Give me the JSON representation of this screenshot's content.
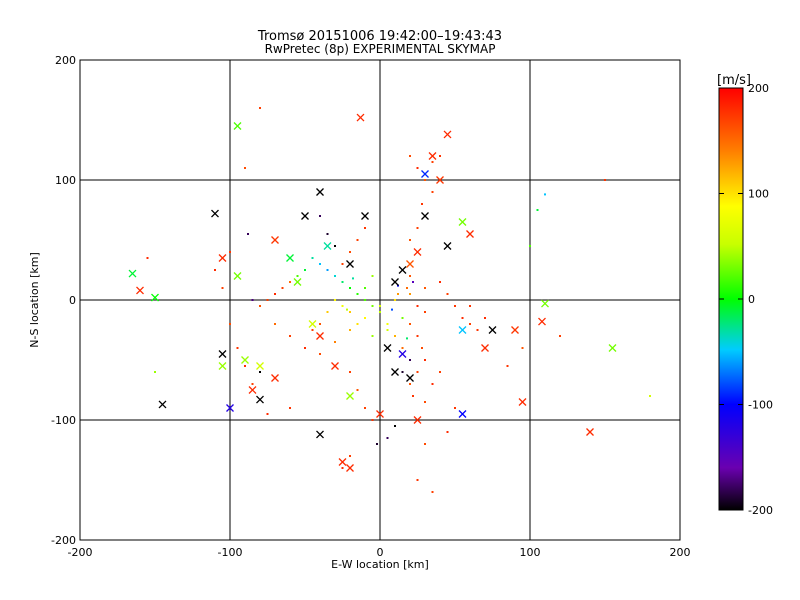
{
  "chart_data": {
    "type": "scatter",
    "title": "Tromsø 20151006 19:42:00–19:43:43",
    "subtitle": "RwPretec (8p) EXPERIMENTAL SKYMAP",
    "xlabel": "E-W location [km]",
    "ylabel": "N-S location [km]",
    "xlim": [
      -200,
      200
    ],
    "ylim": [
      -200,
      200
    ],
    "xticks": [
      "-200",
      "-100",
      "0",
      "100",
      "200"
    ],
    "yticks": [
      "-200",
      "-100",
      "0",
      "100",
      "200"
    ],
    "grid": true,
    "colorbar": {
      "label": "[m/s]",
      "range": [
        -200,
        200
      ],
      "ticks": [
        "-200",
        "-100",
        "0",
        "100",
        "200"
      ]
    },
    "series": [
      {
        "marker": "dot",
        "points": [
          [
            15,
            25,
            170
          ],
          [
            20,
            20,
            160
          ],
          [
            18,
            10,
            150
          ],
          [
            12,
            5,
            130
          ],
          [
            25,
            -5,
            180
          ],
          [
            30,
            -10,
            170
          ],
          [
            20,
            -20,
            160
          ],
          [
            25,
            -30,
            175
          ],
          [
            28,
            -40,
            165
          ],
          [
            30,
            -50,
            180
          ],
          [
            25,
            -60,
            170
          ],
          [
            20,
            -70,
            160
          ],
          [
            22,
            -80,
            175
          ],
          [
            30,
            -85,
            165
          ],
          [
            35,
            -70,
            180
          ],
          [
            40,
            -60,
            170
          ],
          [
            15,
            -40,
            150
          ],
          [
            10,
            -30,
            120
          ],
          [
            5,
            -20,
            80
          ],
          [
            0,
            -10,
            50
          ],
          [
            -5,
            -5,
            30
          ],
          [
            -10,
            0,
            20
          ],
          [
            -15,
            5,
            10
          ],
          [
            -20,
            10,
            0
          ],
          [
            -25,
            15,
            -20
          ],
          [
            -30,
            20,
            -40
          ],
          [
            -35,
            25,
            -60
          ],
          [
            -40,
            30,
            -50
          ],
          [
            -45,
            35,
            -30
          ],
          [
            -50,
            25,
            -10
          ],
          [
            -55,
            20,
            20
          ],
          [
            -60,
            15,
            150
          ],
          [
            -65,
            10,
            170
          ],
          [
            -70,
            5,
            180
          ],
          [
            -75,
            0,
            170
          ],
          [
            -80,
            -5,
            160
          ],
          [
            -70,
            -20,
            150
          ],
          [
            -60,
            -30,
            170
          ],
          [
            -50,
            -40,
            180
          ],
          [
            -40,
            -45,
            165
          ],
          [
            -30,
            -35,
            140
          ],
          [
            -20,
            -25,
            120
          ],
          [
            -10,
            -15,
            90
          ],
          [
            0,
            -5,
            60
          ],
          [
            10,
            0,
            100
          ],
          [
            20,
            5,
            130
          ],
          [
            30,
            10,
            160
          ],
          [
            40,
            15,
            180
          ],
          [
            45,
            5,
            170
          ],
          [
            50,
            -5,
            175
          ],
          [
            55,
            -15,
            180
          ],
          [
            60,
            -20,
            170
          ],
          [
            65,
            -25,
            175
          ],
          [
            70,
            -15,
            180
          ],
          [
            -15,
            -20,
            100
          ],
          [
            -20,
            -10,
            110
          ],
          [
            -25,
            -5,
            80
          ],
          [
            -30,
            0,
            90
          ],
          [
            -35,
            -10,
            110
          ],
          [
            -40,
            -20,
            160
          ],
          [
            -45,
            -25,
            170
          ],
          [
            -25,
            30,
            170
          ],
          [
            -20,
            40,
            165
          ],
          [
            -15,
            50,
            170
          ],
          [
            -10,
            60,
            175
          ],
          [
            20,
            50,
            160
          ],
          [
            25,
            60,
            170
          ],
          [
            30,
            70,
            180
          ],
          [
            28,
            80,
            175
          ],
          [
            35,
            90,
            170
          ],
          [
            30,
            100,
            160
          ],
          [
            25,
            110,
            180
          ],
          [
            35,
            115,
            170
          ],
          [
            40,
            120,
            175
          ],
          [
            20,
            120,
            165
          ],
          [
            -20,
            -60,
            170
          ],
          [
            -15,
            -75,
            160
          ],
          [
            -10,
            -90,
            170
          ],
          [
            -5,
            -100,
            175
          ],
          [
            -25,
            -140,
            180
          ],
          [
            -20,
            -130,
            170
          ],
          [
            25,
            -150,
            175
          ],
          [
            35,
            -160,
            170
          ],
          [
            30,
            -120,
            165
          ],
          [
            45,
            -110,
            180
          ],
          [
            50,
            -90,
            175
          ],
          [
            -85,
            -70,
            170
          ],
          [
            -90,
            -55,
            180
          ],
          [
            -95,
            -40,
            175
          ],
          [
            -100,
            -20,
            165
          ],
          [
            -105,
            10,
            170
          ],
          [
            -110,
            25,
            180
          ],
          [
            -100,
            40,
            175
          ],
          [
            5,
            -25,
            60
          ],
          [
            -5,
            -30,
            40
          ],
          [
            15,
            -15,
            30
          ],
          [
            -10,
            10,
            20
          ],
          [
            -5,
            20,
            40
          ],
          [
            8,
            -8,
            -80
          ],
          [
            12,
            12,
            -100
          ],
          [
            -18,
            18,
            -30
          ],
          [
            -22,
            -8,
            50
          ],
          [
            18,
            -32,
            -20
          ],
          [
            22,
            15,
            -150
          ],
          [
            -30,
            45,
            -200
          ],
          [
            -35,
            55,
            -190
          ],
          [
            -40,
            70,
            -180
          ],
          [
            20,
            -50,
            -180
          ],
          [
            15,
            -60,
            -190
          ],
          [
            -80,
            -60,
            -200
          ],
          [
            10,
            -105,
            -200
          ],
          [
            5,
            -115,
            -180
          ],
          [
            -2,
            -120,
            -190
          ],
          [
            -85,
            0,
            -170
          ],
          [
            -88,
            55,
            -180
          ],
          [
            100,
            45,
            20
          ],
          [
            105,
            75,
            -10
          ],
          [
            110,
            88,
            -50
          ],
          [
            -150,
            -60,
            40
          ],
          [
            180,
            -80,
            60
          ],
          [
            95,
            -40,
            160
          ],
          [
            120,
            -30,
            170
          ],
          [
            85,
            -55,
            175
          ],
          [
            -155,
            35,
            180
          ],
          [
            150,
            100,
            175
          ],
          [
            -80,
            160,
            170
          ],
          [
            -90,
            110,
            165
          ],
          [
            -60,
            -90,
            175
          ],
          [
            -75,
            -95,
            180
          ],
          [
            60,
            -5,
            175
          ]
        ]
      },
      {
        "marker": "cross",
        "points": [
          [
            -95,
            145,
            20
          ],
          [
            -110,
            72,
            -200
          ],
          [
            -105,
            35,
            180
          ],
          [
            -95,
            20,
            30
          ],
          [
            -150,
            2,
            0
          ],
          [
            -165,
            22,
            -10
          ],
          [
            -160,
            8,
            180
          ],
          [
            -105,
            -55,
            40
          ],
          [
            -100,
            -90,
            -120
          ],
          [
            -145,
            -87,
            -200
          ],
          [
            -105,
            -45,
            -200
          ],
          [
            -90,
            -50,
            40
          ],
          [
            -85,
            -75,
            180
          ],
          [
            -80,
            -83,
            -200
          ],
          [
            -40,
            -112,
            -200
          ],
          [
            -20,
            -140,
            180
          ],
          [
            -25,
            -135,
            180
          ],
          [
            -13,
            152,
            180
          ],
          [
            30,
            105,
            -90
          ],
          [
            40,
            100,
            175
          ],
          [
            35,
            120,
            180
          ],
          [
            45,
            138,
            180
          ],
          [
            55,
            65,
            30
          ],
          [
            60,
            55,
            180
          ],
          [
            45,
            45,
            -200
          ],
          [
            25,
            40,
            180
          ],
          [
            20,
            30,
            160
          ],
          [
            15,
            25,
            -200
          ],
          [
            10,
            15,
            -200
          ],
          [
            -20,
            30,
            -200
          ],
          [
            -35,
            45,
            -30
          ],
          [
            -50,
            70,
            -200
          ],
          [
            -40,
            90,
            -200
          ],
          [
            -10,
            70,
            -200
          ],
          [
            30,
            70,
            -200
          ],
          [
            -70,
            50,
            175
          ],
          [
            15,
            -45,
            -120
          ],
          [
            20,
            -65,
            -200
          ],
          [
            10,
            -60,
            -200
          ],
          [
            5,
            -40,
            -200
          ],
          [
            0,
            -95,
            180
          ],
          [
            25,
            -100,
            180
          ],
          [
            55,
            -95,
            -100
          ],
          [
            95,
            -85,
            180
          ],
          [
            140,
            -110,
            180
          ],
          [
            155,
            -40,
            30
          ],
          [
            110,
            -3,
            30
          ],
          [
            108,
            -18,
            180
          ],
          [
            90,
            -25,
            175
          ],
          [
            75,
            -25,
            -200
          ],
          [
            70,
            -40,
            180
          ],
          [
            55,
            -25,
            -50
          ],
          [
            -40,
            -30,
            180
          ],
          [
            -30,
            -55,
            180
          ],
          [
            -20,
            -80,
            40
          ],
          [
            -70,
            -65,
            180
          ],
          [
            -80,
            -55,
            60
          ],
          [
            -60,
            35,
            -10
          ],
          [
            -55,
            15,
            30
          ],
          [
            -45,
            -20,
            60
          ]
        ]
      }
    ]
  }
}
